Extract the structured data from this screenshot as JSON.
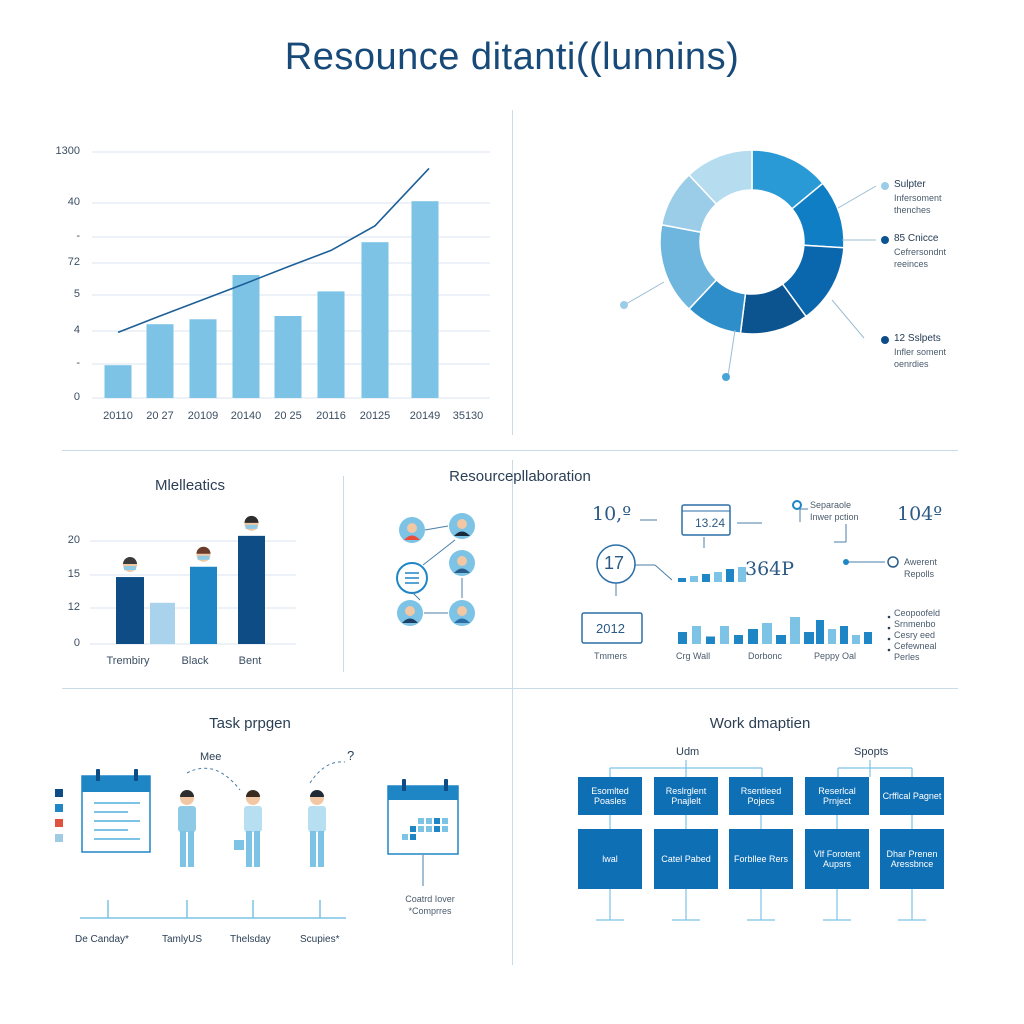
{
  "title": "Resounce ditanti((lunnins)",
  "colors": {
    "light": "#7cc3e6",
    "mid": "#1f86c6",
    "dark": "#0e4c86",
    "line": "#1d5f97",
    "grid": "#d9e6ef"
  },
  "chart_data": [
    {
      "type": "bar",
      "categories": [
        "20110",
        "20 27",
        "20109",
        "20140",
        "20 25",
        "20116",
        "20125",
        "20149"
      ],
      "extra_xtick": "35130",
      "values": [
        2,
        4.5,
        4.8,
        7.5,
        5,
        6.5,
        9.5,
        12
      ],
      "trend": [
        4,
        5,
        6,
        7,
        8,
        9,
        10.5,
        14
      ],
      "ytick_labels": [
        "1300",
        "40",
        "-",
        "72",
        "5",
        "4",
        "-",
        "0"
      ],
      "ylim": [
        0,
        15
      ]
    },
    {
      "type": "pie",
      "values": [
        14,
        12,
        14,
        12,
        10,
        16,
        10,
        12
      ],
      "legend": [
        {
          "title": "Sulpter",
          "desc": [
            "Infersoment",
            "thenches"
          ]
        },
        {
          "title": "85 Cnicce",
          "desc": [
            "Cefrersondnt",
            "reeinces"
          ]
        },
        {
          "title": "12 Sslpets",
          "desc": [
            "Infler soment",
            "oenrdies"
          ]
        }
      ]
    },
    {
      "type": "bar",
      "title": "Mlelleatics",
      "categories": [
        "Trembiry",
        "Black",
        "Bent"
      ],
      "series": [
        {
          "values": [
            13,
            15,
            21
          ]
        },
        {
          "values": [
            8,
            0,
            0
          ]
        }
      ],
      "ytick_labels": [
        "20",
        "15",
        "12",
        "0"
      ],
      "ylim": [
        0,
        25
      ]
    }
  ],
  "collab": {
    "title": "Resourcepllaboration",
    "kpis": [
      "10,º",
      "17",
      "13.24",
      "364P",
      "2012",
      "104º"
    ],
    "notes": [
      "Separaole",
      "Inwer pction",
      "Awerent",
      "Repolls"
    ],
    "mini_labels": [
      "Tmmers",
      "Crg Wall",
      "Dorbonc",
      "Peppy Oal"
    ],
    "bullets": [
      "Ceopoofeld",
      "Srnmenbo",
      "Cesry eed",
      "Cefewneal",
      "Perles"
    ],
    "mini_bars": [
      [
        4,
        6,
        8,
        10,
        13,
        15
      ],
      [
        8,
        12,
        5,
        12,
        6
      ],
      [
        10,
        14,
        6,
        18,
        8
      ],
      [
        16,
        10,
        12,
        6,
        8
      ]
    ]
  },
  "task": {
    "title": "Task prpgen",
    "me_label": "Mee",
    "q_label": "?",
    "note": [
      "Coatrd Iover",
      "*Comprres"
    ],
    "days": [
      "De Canday*",
      "TamlyUS",
      "Thelsday",
      "Scupies*"
    ],
    "legend_colors": [
      "#0e4c86",
      "#1f86c6",
      "#e0523e",
      "#9fcbe5"
    ]
  },
  "work": {
    "title": "Work dmaptien",
    "top_labels": [
      "Udm",
      "Spopts"
    ],
    "row1": [
      "Esomlted Poasles",
      "Reslrglent Pnajlelt",
      "Rsentieed Pojecs",
      "Reserlcal Prnject",
      "Crfflcal Pagnet"
    ],
    "row2": [
      "lwal",
      "Catel Pabed",
      "Forbllee Rers",
      "Vlf Forotent Aupsrs",
      "Dhar Prenen Aressbnce"
    ]
  }
}
